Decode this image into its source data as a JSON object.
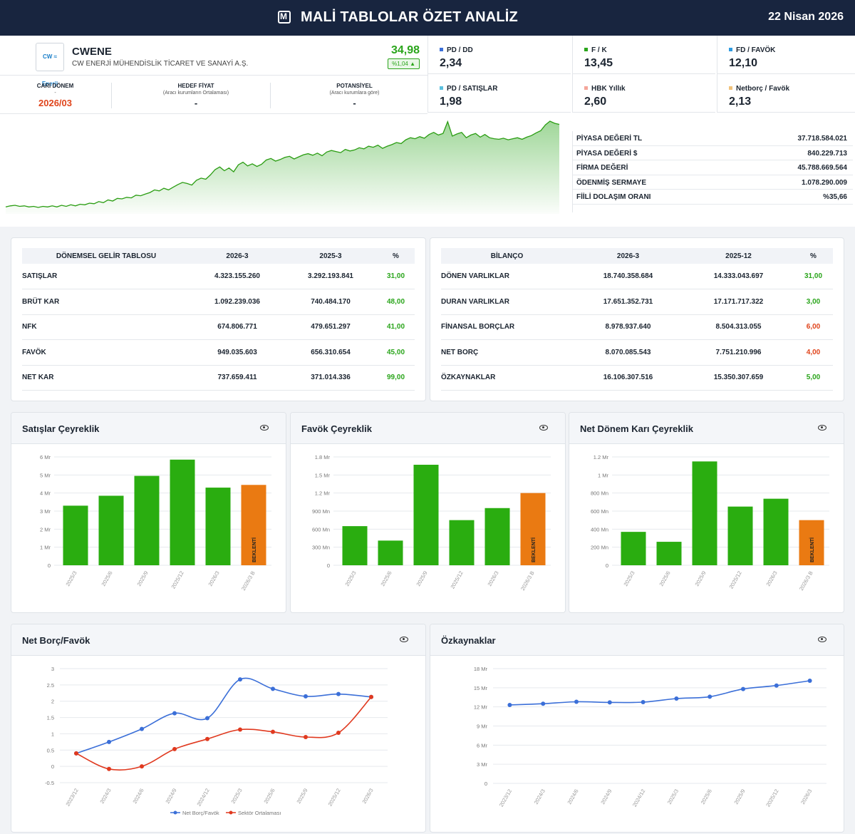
{
  "header": {
    "title": "MALİ TABLOLAR ÖZET ANALİZ",
    "date": "22 Nisan 2026"
  },
  "company": {
    "logo_text": "CW ≈ Enerji",
    "ticker": "CWENE",
    "name": "CW ENERJİ MÜHENDİSLİK TİCARET VE SANAYİ A.Ş.",
    "price": "34,98",
    "change": "%1,04"
  },
  "period": {
    "current": {
      "label": "CARİ DÖNEM",
      "sub": "-",
      "value": "2026/03"
    },
    "target": {
      "label": "HEDEF FİYAT",
      "sub": "(Aracı kurumların Ortalaması)",
      "value": "-"
    },
    "potential": {
      "label": "POTANSİYEL",
      "sub": "(Aracı kurumlara göre)",
      "value": "-"
    }
  },
  "ratios": [
    {
      "label": "PD / DD",
      "value": "2,34",
      "color": "#3b6fd8"
    },
    {
      "label": "F / K",
      "value": "13,45",
      "color": "#2aa51b"
    },
    {
      "label": "FD / FAVÖK",
      "value": "12,10",
      "color": "#2f9be0"
    },
    {
      "label": "PD / SATIŞLAR",
      "value": "1,98",
      "color": "#5bc0de"
    },
    {
      "label": "HBK Yıllık",
      "value": "2,60",
      "color": "#f4a59a"
    },
    {
      "label": "Netborç / Favök",
      "value": "2,13",
      "color": "#f0c27b"
    }
  ],
  "stock_series": [
    20,
    22,
    23,
    21,
    22,
    20,
    21,
    19,
    21,
    20,
    22,
    20,
    23,
    21,
    24,
    22,
    25,
    24,
    27,
    26,
    30,
    28,
    33,
    31,
    36,
    35,
    38,
    37,
    42,
    41,
    44,
    47,
    52,
    50,
    55,
    52,
    57,
    62,
    66,
    64,
    61,
    70,
    74,
    72,
    80,
    90,
    95,
    88,
    93,
    86,
    99,
    104,
    97,
    101,
    96,
    100,
    108,
    111,
    106,
    109,
    113,
    115,
    110,
    114,
    118,
    120,
    117,
    121,
    116,
    123,
    126,
    124,
    122,
    128,
    125,
    127,
    131,
    129,
    134,
    132,
    136,
    130,
    134,
    137,
    141,
    139,
    146,
    150,
    148,
    152,
    149,
    156,
    160,
    155,
    158,
    180,
    153,
    157,
    160,
    150,
    155,
    158,
    151,
    156,
    150,
    148,
    147,
    149,
    146,
    148,
    150,
    147,
    151,
    154,
    159,
    163,
    174,
    181,
    177,
    175
  ],
  "market": [
    {
      "k": "PİYASA DEĞERİ TL",
      "v": "37.718.584.021"
    },
    {
      "k": "PİYASA DEĞERİ $",
      "v": "840.229.713"
    },
    {
      "k": "FİRMA DEĞERİ",
      "v": "45.788.669.564"
    },
    {
      "k": "ÖDENMİŞ SERMAYE",
      "v": "1.078.290.009"
    },
    {
      "k": "FİİLİ DOLAŞIM ORANI",
      "v": "%35,66"
    }
  ],
  "income": {
    "headers": [
      "DÖNEMSEL GELİR TABLOSU",
      "2026-3",
      "2025-3",
      "%"
    ],
    "rows": [
      {
        "k": "SATIŞLAR",
        "a": "4.323.155.260",
        "b": "3.292.193.841",
        "p": "31,00",
        "c": "g"
      },
      {
        "k": "BRÜT KAR",
        "a": "1.092.239.036",
        "b": "740.484.170",
        "p": "48,00",
        "c": "g"
      },
      {
        "k": "NFK",
        "a": "674.806.771",
        "b": "479.651.297",
        "p": "41,00",
        "c": "g"
      },
      {
        "k": "FAVÖK",
        "a": "949.035.603",
        "b": "656.310.654",
        "p": "45,00",
        "c": "g"
      },
      {
        "k": "NET KAR",
        "a": "737.659.411",
        "b": "371.014.336",
        "p": "99,00",
        "c": "g"
      }
    ]
  },
  "balance": {
    "headers": [
      "BİLANÇO",
      "2026-3",
      "2025-12",
      "%"
    ],
    "rows": [
      {
        "k": "DÖNEN VARLIKLAR",
        "a": "18.740.358.684",
        "b": "14.333.043.697",
        "p": "31,00",
        "c": "g"
      },
      {
        "k": "DURAN VARLIKLAR",
        "a": "17.651.352.731",
        "b": "17.171.717.322",
        "p": "3,00",
        "c": "g"
      },
      {
        "k": "FİNANSAL BORÇLAR",
        "a": "8.978.937.640",
        "b": "8.504.313.055",
        "p": "6,00",
        "c": "r"
      },
      {
        "k": "NET BORÇ",
        "a": "8.070.085.543",
        "b": "7.751.210.996",
        "p": "4,00",
        "c": "r"
      },
      {
        "k": "ÖZKAYNAKLAR",
        "a": "16.106.307.516",
        "b": "15.350.307.659",
        "p": "5,00",
        "c": "g"
      }
    ]
  },
  "chart_data": [
    {
      "type": "bar",
      "title": "Satışlar Çeyreklik",
      "categories": [
        "2025/3",
        "2025/6",
        "2025/9",
        "2025/12",
        "2026/3",
        "2026/3 B"
      ],
      "values": [
        3.3,
        3.85,
        4.95,
        5.85,
        4.3,
        4.45
      ],
      "ylim": [
        0,
        6
      ],
      "yticks": [
        [
          0,
          "0"
        ],
        [
          1,
          "1 Mr"
        ],
        [
          2,
          "2 Mr"
        ],
        [
          3,
          "3 Mr"
        ],
        [
          4,
          "4 Mr"
        ],
        [
          5,
          "5 Mr"
        ],
        [
          6,
          "6 Mr"
        ]
      ],
      "highlight_last": "BEKLENTİ",
      "bar_color": "#2aad10",
      "expected_color": "#ea7a12"
    },
    {
      "type": "bar",
      "title": "Favök Çeyreklik",
      "categories": [
        "2025/3",
        "2025/6",
        "2025/9",
        "2025/12",
        "2026/3",
        "2026/3 B"
      ],
      "values": [
        650,
        410,
        1670,
        750,
        950,
        1200
      ],
      "ylim": [
        0,
        1800
      ],
      "yticks": [
        [
          0,
          "0"
        ],
        [
          300,
          "300 Mn"
        ],
        [
          600,
          "600 Mn"
        ],
        [
          900,
          "900 Mn"
        ],
        [
          1200,
          "1.2 Mr"
        ],
        [
          1500,
          "1.5 Mr"
        ],
        [
          1800,
          "1.8 Mr"
        ]
      ],
      "highlight_last": "BEKLENTİ",
      "bar_color": "#2aad10",
      "expected_color": "#ea7a12"
    },
    {
      "type": "bar",
      "title": "Net Dönem Karı Çeyreklik",
      "categories": [
        "2025/3",
        "2025/6",
        "2025/9",
        "2025/12",
        "2026/3",
        "2026/3 B"
      ],
      "values": [
        370,
        260,
        1150,
        650,
        737,
        500
      ],
      "ylim": [
        0,
        1200
      ],
      "yticks": [
        [
          0,
          "0"
        ],
        [
          200,
          "200 Mn"
        ],
        [
          400,
          "400 Mn"
        ],
        [
          600,
          "600 Mn"
        ],
        [
          800,
          "800 Mn"
        ],
        [
          1000,
          "1 Mr"
        ],
        [
          1200,
          "1.2 Mr"
        ]
      ],
      "highlight_last": "BEKLENTİ",
      "bar_color": "#2aad10",
      "expected_color": "#ea7a12"
    },
    {
      "type": "line",
      "title": "Net Borç/Favök",
      "x": [
        "2023/12",
        "2024/3",
        "2024/6",
        "2024/9",
        "2024/12",
        "2025/3",
        "2025/6",
        "2025/9",
        "2025/12",
        "2026/3"
      ],
      "series": [
        {
          "name": "Net Borç/Favök",
          "values": [
            0.4,
            0.75,
            1.15,
            1.63,
            1.48,
            2.67,
            2.38,
            2.15,
            2.22,
            2.13
          ],
          "color": "#3b6fd8"
        },
        {
          "name": "Sektör Ortalaması",
          "values": [
            0.4,
            -0.08,
            0.0,
            0.53,
            0.84,
            1.13,
            1.06,
            0.9,
            1.03,
            2.13
          ],
          "color": "#e0391f"
        }
      ],
      "ylim": [
        -0.5,
        3
      ],
      "yticks": [
        [
          -0.5,
          "-0.5"
        ],
        [
          0,
          "0"
        ],
        [
          0.5,
          "0.5"
        ],
        [
          1,
          "1"
        ],
        [
          1.5,
          "1.5"
        ],
        [
          2,
          "2"
        ],
        [
          2.5,
          "2.5"
        ],
        [
          3,
          "3"
        ]
      ],
      "legend": "bottom"
    },
    {
      "type": "line",
      "title": "Özkaynaklar",
      "x": [
        "2023/12",
        "2024/3",
        "2024/6",
        "2024/9",
        "2024/12",
        "2025/3",
        "2025/6",
        "2025/9",
        "2025/12",
        "2026/3"
      ],
      "series": [
        {
          "values": [
            12.3,
            12.5,
            12.8,
            12.7,
            12.75,
            13.3,
            13.6,
            14.8,
            15.35,
            16.1
          ],
          "color": "#3b6fd8"
        }
      ],
      "ylim": [
        0,
        18
      ],
      "yticks": [
        [
          0,
          "0"
        ],
        [
          3,
          "3 Mr"
        ],
        [
          6,
          "6 Mr"
        ],
        [
          9,
          "9 Mr"
        ],
        [
          12,
          "12 Mr"
        ],
        [
          15,
          "15 Mr"
        ],
        [
          18,
          "18 Mr"
        ]
      ]
    }
  ]
}
